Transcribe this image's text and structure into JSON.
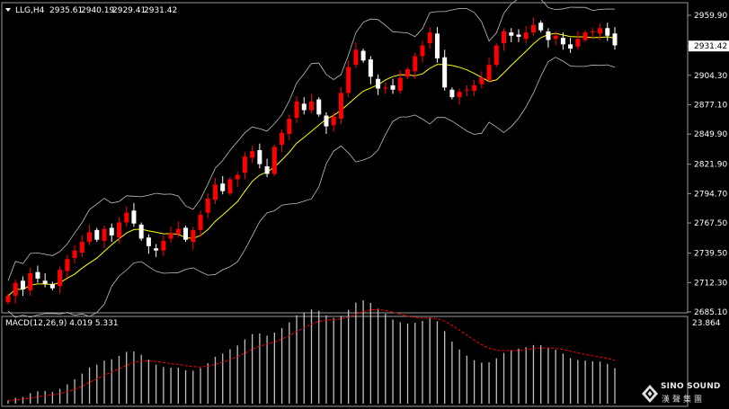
{
  "header": {
    "symbol_timeframe": "LLG,H4",
    "open": "2935.61",
    "high": "2940.19",
    "low": "2929.41",
    "close": "2931.42"
  },
  "price_axis": {
    "ticks": [
      "2959.90",
      "2931.42",
      "2904.30",
      "2877.10",
      "2849.90",
      "2821.90",
      "2794.70",
      "2767.50",
      "2739.50",
      "2712.30",
      "2685.10"
    ],
    "current_price": "2931.42",
    "current_label_bg": "#ffffff",
    "current_label_fg": "#000000"
  },
  "macd": {
    "label": "MACD(12,26,9) 4.019 5.331",
    "top_value": "23.864"
  },
  "watermark": {
    "brand": "SINO SOUND",
    "cjk": "漢聲集團",
    "icon": "diamond-logo-icon"
  },
  "colors": {
    "background": "#000000",
    "bull_candle": "#ff0000",
    "bear_candle": "#ffffff",
    "ma_fast": "#ffff00",
    "bollinger": "#c0c0c0",
    "macd_hist": "#c0c0c0",
    "macd_signal": "#ff0000"
  },
  "chart_data": {
    "type": "candlestick",
    "instrument": "LLG",
    "timeframe": "H4",
    "ylim": [
      2685.1,
      2959.9
    ],
    "last_close": 2931.42,
    "indicators": [
      "MA",
      "Bollinger Bands",
      "MACD(12,26,9)"
    ],
    "macd": {
      "macd": 4.019,
      "signal": 5.331,
      "panel_max": 23.864
    },
    "closes": [
      2700,
      2712,
      2706,
      2721,
      2716,
      2711,
      2707,
      2724,
      2734,
      2742,
      2750,
      2759,
      2752,
      2762,
      2756,
      2768,
      2777,
      2767,
      2753,
      2746,
      2742,
      2751,
      2758,
      2762,
      2752,
      2761,
      2775,
      2790,
      2803,
      2797,
      2808,
      2812,
      2829,
      2834,
      2822,
      2813,
      2838,
      2851,
      2864,
      2880,
      2872,
      2880,
      2868,
      2857,
      2866,
      2888,
      2912,
      2928,
      2918,
      2903,
      2892,
      2893,
      2891,
      2902,
      2910,
      2922,
      2932,
      2944,
      2920,
      2893,
      2884,
      2889,
      2891,
      2895,
      2902,
      2914,
      2932,
      2945,
      2941,
      2940,
      2944,
      2951,
      2946,
      2937,
      2941,
      2933,
      2929,
      2938,
      2944,
      2945,
      2948,
      2941,
      2932
    ]
  }
}
